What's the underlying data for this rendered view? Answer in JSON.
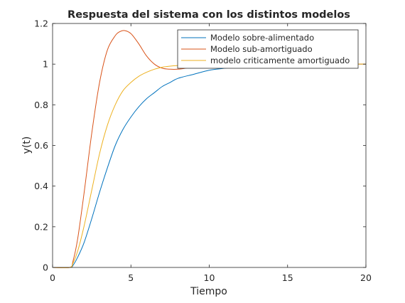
{
  "chart_data": {
    "type": "line",
    "title": "Respuesta del sistema con los distintos modelos",
    "xlabel": "Tiempo",
    "ylabel": "y(t)",
    "xlim": [
      0,
      20
    ],
    "ylim": [
      0,
      1.2
    ],
    "xticks": [
      0,
      5,
      10,
      15,
      20
    ],
    "xtick_labels": [
      "0",
      "5",
      "10",
      "15",
      "20"
    ],
    "yticks": [
      0,
      0.2,
      0.4,
      0.6,
      0.8,
      1,
      1.2
    ],
    "ytick_labels": [
      "0",
      "0.2",
      "0.4",
      "0.6",
      "0.8",
      "1",
      "1.2"
    ],
    "grid": false,
    "legend_position": "top-right",
    "series": [
      {
        "name": "Modelo sobre-alimentado",
        "color": "#0072bd",
        "x": [
          0,
          1.1,
          1.3,
          1.6,
          2,
          2.5,
          3,
          3.5,
          4,
          4.5,
          5,
          5.5,
          6,
          6.5,
          7,
          7.5,
          8,
          9,
          10,
          11,
          12,
          13,
          14,
          15,
          16,
          17,
          18,
          19,
          20
        ],
        "y": [
          0,
          0,
          0.01,
          0.05,
          0.12,
          0.24,
          0.37,
          0.49,
          0.6,
          0.68,
          0.74,
          0.79,
          0.83,
          0.86,
          0.89,
          0.91,
          0.93,
          0.95,
          0.97,
          0.98,
          0.99,
          0.99,
          0.995,
          0.997,
          0.998,
          0.999,
          1.0,
          1.0,
          1.0
        ]
      },
      {
        "name": "Modelo sub-amortiguado",
        "color": "#d95319",
        "x": [
          0,
          1.1,
          1.3,
          1.6,
          2,
          2.5,
          3,
          3.5,
          4,
          4.3,
          4.6,
          5,
          5.5,
          6,
          6.5,
          7,
          7.5,
          8,
          8.5,
          9,
          10,
          11,
          12,
          13,
          14,
          15,
          16,
          17,
          18,
          19,
          20
        ],
        "y": [
          0,
          0,
          0.03,
          0.14,
          0.36,
          0.66,
          0.91,
          1.07,
          1.14,
          1.16,
          1.165,
          1.15,
          1.1,
          1.04,
          1.0,
          0.98,
          0.975,
          0.975,
          0.98,
          0.99,
          1.0,
          1.005,
          1.005,
          1.0,
          1.0,
          1.0,
          1.0,
          1.0,
          1.0,
          1.0,
          1.0
        ]
      },
      {
        "name": "modelo criticamente amortiguado",
        "color": "#edb120",
        "x": [
          0,
          1.1,
          1.3,
          1.6,
          2,
          2.5,
          3,
          3.5,
          4,
          4.5,
          5,
          5.5,
          6,
          6.5,
          7,
          7.5,
          8,
          9,
          10,
          11,
          12,
          13,
          14,
          15,
          16,
          17,
          18,
          19,
          20
        ],
        "y": [
          0,
          0,
          0.02,
          0.08,
          0.2,
          0.38,
          0.56,
          0.7,
          0.8,
          0.87,
          0.91,
          0.94,
          0.96,
          0.975,
          0.985,
          0.99,
          0.993,
          0.997,
          0.999,
          1.0,
          1.0,
          1.0,
          1.0,
          1.0,
          1.0,
          1.0,
          1.0,
          1.0,
          1.0
        ]
      }
    ]
  }
}
